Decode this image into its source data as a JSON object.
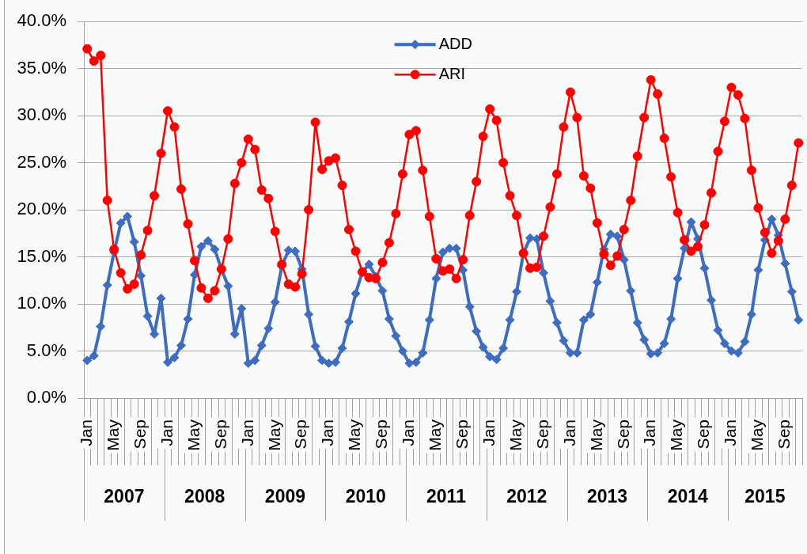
{
  "chart_data": {
    "type": "line",
    "categories": [
      "Jan",
      null,
      null,
      null,
      "May",
      null,
      null,
      null,
      "Sep",
      null,
      null,
      null,
      "Jan",
      null,
      null,
      null,
      "May",
      null,
      null,
      null,
      "Sep",
      null,
      null,
      null,
      "Jan",
      null,
      null,
      null,
      "May",
      null,
      null,
      null,
      "Sep",
      null,
      null,
      null,
      "Jan",
      null,
      null,
      null,
      "May",
      null,
      null,
      null,
      "Sep",
      null,
      null,
      null,
      "Jan",
      null,
      null,
      null,
      "May",
      null,
      null,
      null,
      "Sep",
      null,
      null,
      null,
      "Jan",
      null,
      null,
      null,
      "May",
      null,
      null,
      null,
      "Sep",
      null,
      null,
      null,
      "Jan",
      null,
      null,
      null,
      "May",
      null,
      null,
      null,
      "Sep",
      null,
      null,
      null,
      "Jan",
      null,
      null,
      null,
      "May",
      null,
      null,
      null,
      "Sep",
      null,
      null,
      null,
      "Jan",
      null,
      null,
      null,
      "May",
      null,
      null,
      null,
      "Sep",
      null,
      null
    ],
    "series": [
      {
        "name": "ADD",
        "color": "#3e6cc0",
        "marker": "diamond",
        "values": [
          4.0,
          4.5,
          7.6,
          12.0,
          15.5,
          18.6,
          19.3,
          16.6,
          13.0,
          8.7,
          6.8,
          10.6,
          3.8,
          4.3,
          5.6,
          8.4,
          13.1,
          16.1,
          16.7,
          15.8,
          13.7,
          11.9,
          6.8,
          9.5,
          3.7,
          4.0,
          5.6,
          7.4,
          10.2,
          14.0,
          15.7,
          15.6,
          13.7,
          8.9,
          5.5,
          4.0,
          3.7,
          3.8,
          5.3,
          8.1,
          11.1,
          13.4,
          14.2,
          12.9,
          11.4,
          8.4,
          6.6,
          5.0,
          3.7,
          3.8,
          4.8,
          8.3,
          12.7,
          15.5,
          15.9,
          15.9,
          13.6,
          9.7,
          7.1,
          5.4,
          4.4,
          4.1,
          5.3,
          8.3,
          11.3,
          15.4,
          17.0,
          16.9,
          13.3,
          10.3,
          8.0,
          6.1,
          4.8,
          4.8,
          8.3,
          8.9,
          12.3,
          15.8,
          17.4,
          17.2,
          14.7,
          11.4,
          8.0,
          6.2,
          4.7,
          4.8,
          5.8,
          8.4,
          12.7,
          15.9,
          18.7,
          16.9,
          13.8,
          10.4,
          7.2,
          5.8,
          5.0,
          4.8,
          6.0,
          8.9,
          13.6,
          16.8,
          19.0,
          17.3,
          14.3,
          11.3,
          8.3
        ]
      },
      {
        "name": "ARI",
        "color": "#ff0000",
        "marker": "circle",
        "values": [
          37.1,
          35.8,
          36.4,
          21.0,
          15.8,
          13.3,
          11.6,
          12.1,
          15.2,
          17.8,
          21.5,
          26.0,
          30.5,
          28.8,
          22.2,
          18.5,
          14.6,
          11.7,
          10.6,
          11.4,
          13.7,
          16.9,
          22.8,
          25.0,
          27.5,
          26.4,
          22.1,
          21.2,
          17.7,
          14.2,
          12.1,
          11.8,
          13.2,
          20.0,
          29.3,
          24.3,
          25.2,
          25.5,
          22.6,
          17.9,
          15.6,
          13.4,
          12.8,
          12.7,
          14.4,
          16.5,
          19.6,
          23.8,
          28.0,
          28.4,
          24.2,
          19.3,
          14.8,
          13.5,
          13.7,
          12.7,
          14.7,
          19.4,
          23.0,
          27.8,
          30.7,
          29.5,
          25.0,
          21.5,
          19.4,
          15.4,
          13.8,
          13.9,
          17.2,
          20.3,
          23.8,
          28.8,
          32.5,
          29.8,
          23.6,
          22.3,
          18.6,
          15.3,
          14.1,
          15.1,
          17.9,
          21.0,
          25.7,
          29.8,
          33.8,
          32.3,
          27.6,
          23.5,
          19.7,
          16.8,
          15.6,
          16.1,
          18.4,
          21.8,
          26.2,
          29.4,
          33.0,
          32.2,
          29.7,
          24.2,
          20.2,
          17.6,
          15.4,
          16.7,
          19.0,
          22.6,
          27.1
        ]
      }
    ],
    "ylim": [
      0,
      40
    ],
    "yticks": [
      {
        "value": 0,
        "label": "0.0%"
      },
      {
        "value": 5,
        "label": "5.0%"
      },
      {
        "value": 10,
        "label": "10.0%"
      },
      {
        "value": 15,
        "label": "15.0%"
      },
      {
        "value": 20,
        "label": "20.0%"
      },
      {
        "value": 25,
        "label": "25.0%"
      },
      {
        "value": 30,
        "label": "30.0%"
      },
      {
        "value": 35,
        "label": "35.0%"
      },
      {
        "value": 40,
        "label": "40.0%"
      }
    ],
    "grid": "y",
    "legend": "top",
    "annotations": [
      "2007",
      "2008",
      "2009",
      "2010",
      "2011",
      "2012",
      "2013",
      "2014",
      "2015"
    ]
  }
}
